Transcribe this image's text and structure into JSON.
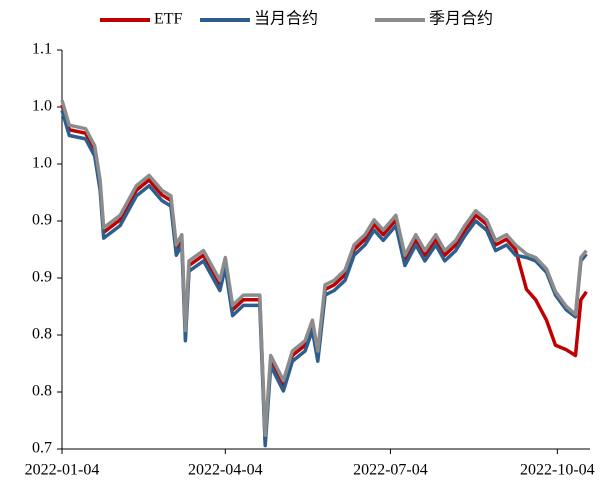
{
  "chart_data": {
    "type": "line",
    "x": [
      "2022-01-04",
      "2022-01-08",
      "2022-01-17",
      "2022-01-22",
      "2022-01-25",
      "2022-01-27",
      "2022-02-05",
      "2022-02-14",
      "2022-02-21",
      "2022-02-28",
      "2022-03-05",
      "2022-03-08",
      "2022-03-11",
      "2022-03-13",
      "2022-03-15",
      "2022-03-23",
      "2022-04-01",
      "2022-04-04",
      "2022-04-08",
      "2022-04-14",
      "2022-04-19",
      "2022-04-23",
      "2022-04-26",
      "2022-04-29",
      "2022-05-06",
      "2022-05-11",
      "2022-05-18",
      "2022-05-22",
      "2022-05-25",
      "2022-05-29",
      "2022-06-03",
      "2022-06-09",
      "2022-06-14",
      "2022-06-20",
      "2022-06-25",
      "2022-06-30",
      "2022-07-07",
      "2022-07-12",
      "2022-07-18",
      "2022-07-23",
      "2022-07-29",
      "2022-08-03",
      "2022-08-09",
      "2022-08-14",
      "2022-08-20",
      "2022-08-26",
      "2022-08-31",
      "2022-09-06",
      "2022-09-11",
      "2022-09-17",
      "2022-09-22",
      "2022-09-28",
      "2022-10-03",
      "2022-10-09",
      "2022-10-14",
      "2022-10-17",
      "2022-10-20"
    ],
    "series": [
      {
        "name": "ETF",
        "color": "#c00000",
        "values": [
          1.052,
          1.03,
          1.027,
          1.012,
          0.982,
          0.94,
          0.951,
          0.977,
          0.986,
          0.973,
          0.968,
          0.925,
          0.934,
          0.85,
          0.911,
          0.92,
          0.894,
          0.914,
          0.872,
          0.881,
          0.881,
          0.881,
          0.758,
          0.828,
          0.806,
          0.832,
          0.841,
          0.859,
          0.832,
          0.89,
          0.894,
          0.903,
          0.925,
          0.934,
          0.947,
          0.938,
          0.951,
          0.916,
          0.934,
          0.92,
          0.934,
          0.92,
          0.929,
          0.942,
          0.955,
          0.947,
          0.929,
          0.934,
          0.925,
          0.89,
          0.881,
          0.863,
          0.841,
          0.837,
          0.832,
          0.881,
          0.888
        ]
      },
      {
        "name": "当月合约",
        "color": "#2e5e8e",
        "values": [
          1.047,
          1.025,
          1.022,
          1.007,
          0.977,
          0.935,
          0.946,
          0.972,
          0.981,
          0.968,
          0.963,
          0.92,
          0.929,
          0.845,
          0.906,
          0.915,
          0.889,
          0.909,
          0.867,
          0.876,
          0.876,
          0.876,
          0.753,
          0.823,
          0.801,
          0.827,
          0.836,
          0.854,
          0.827,
          0.885,
          0.889,
          0.898,
          0.92,
          0.929,
          0.942,
          0.933,
          0.946,
          0.911,
          0.929,
          0.915,
          0.929,
          0.915,
          0.924,
          0.937,
          0.95,
          0.942,
          0.924,
          0.929,
          0.92,
          0.918,
          0.915,
          0.905,
          0.885,
          0.872,
          0.866,
          0.915,
          0.921
        ]
      },
      {
        "name": "季月合约",
        "color": "#8c8c8c",
        "values": [
          1.056,
          1.034,
          1.031,
          1.016,
          0.986,
          0.944,
          0.955,
          0.981,
          0.99,
          0.977,
          0.972,
          0.929,
          0.938,
          0.854,
          0.915,
          0.924,
          0.898,
          0.918,
          0.876,
          0.885,
          0.885,
          0.885,
          0.762,
          0.832,
          0.81,
          0.836,
          0.845,
          0.863,
          0.836,
          0.894,
          0.898,
          0.907,
          0.929,
          0.938,
          0.951,
          0.942,
          0.955,
          0.92,
          0.938,
          0.924,
          0.938,
          0.924,
          0.933,
          0.946,
          0.959,
          0.951,
          0.933,
          0.938,
          0.929,
          0.921,
          0.918,
          0.908,
          0.888,
          0.875,
          0.868,
          0.918,
          0.924
        ]
      }
    ],
    "xlim": [
      "2022-01-04",
      "2022-10-22"
    ],
    "xticks": [
      "2022-01-04",
      "2022-04-04",
      "2022-07-04",
      "2022-10-04"
    ],
    "ylim": [
      0.75,
      1.1
    ],
    "yticks": [
      {
        "value": 0.75,
        "label": "0.7"
      },
      {
        "value": 0.8,
        "label": "0.8"
      },
      {
        "value": 0.85,
        "label": "0.8"
      },
      {
        "value": 0.9,
        "label": "0.9"
      },
      {
        "value": 0.95,
        "label": "0.9"
      },
      {
        "value": 1.0,
        "label": "1.0"
      },
      {
        "value": 1.05,
        "label": "1.0"
      },
      {
        "value": 1.1,
        "label": "1.1"
      }
    ],
    "legend": "top"
  }
}
